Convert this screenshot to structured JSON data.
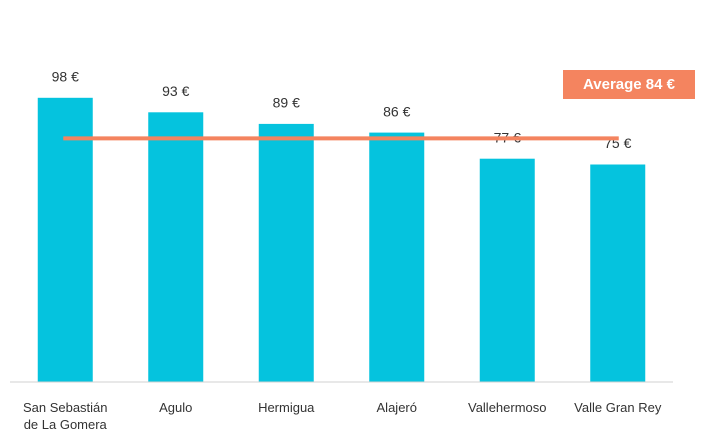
{
  "chart_data": {
    "type": "bar",
    "categories": [
      "San Sebastián de La Gomera",
      "Agulo",
      "Hermigua",
      "Alajeró",
      "Vallehermoso",
      "Valle Gran Rey"
    ],
    "values": [
      98,
      93,
      89,
      86,
      77,
      75
    ],
    "value_labels": [
      "98 €",
      "93 €",
      "89 €",
      "86 €",
      "77 €",
      "75 €"
    ],
    "color": "#05c3de",
    "ylim": [
      0,
      100
    ],
    "average": {
      "value": 84,
      "label": "Average 84 €",
      "color": "#f4845f"
    }
  }
}
